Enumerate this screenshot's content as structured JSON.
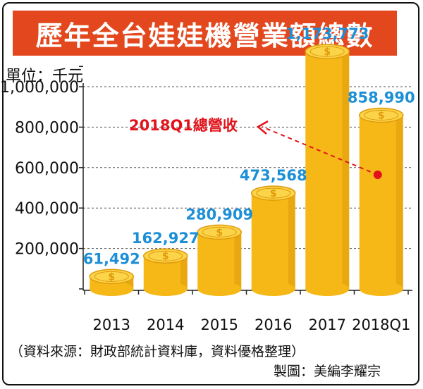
{
  "title": "歷年全台娃娃機營業額總數",
  "unit_label": "單位：千元",
  "source": "（資料來源：財政部統計資料庫，資料優格整理）",
  "credit": "製圖：美編李耀宗",
  "colors": {
    "title_bg": "#e3471d",
    "coin_body": "#f6b817",
    "coin_top": "#fcd449",
    "coin_rim": "#e09a0b",
    "value_label": "#1c8fd6",
    "annotation": "#e2121b",
    "grid": "#555555"
  },
  "chart_data": {
    "type": "bar",
    "title": "歷年全台娃娃機營業額總數",
    "ylabel": "單位：千元",
    "categories": [
      "2013",
      "2014",
      "2015",
      "2016",
      "2017",
      "2018Q1"
    ],
    "values": [
      61492,
      162927,
      280909,
      473568,
      1173773,
      858990
    ],
    "value_labels": [
      "61,492",
      "162,927",
      "280,909",
      "473,568",
      "1,173,773",
      "858,990"
    ],
    "yticks": [
      200000,
      400000,
      600000,
      800000,
      1000000
    ],
    "ytick_labels": [
      "200,000",
      "400,000",
      "600,000",
      "800,000",
      "1,000,000"
    ],
    "ylim": [
      0,
      1200000
    ],
    "grid": true,
    "annotation": {
      "text": "2018Q1總營收",
      "target_category": "2018Q1"
    }
  }
}
